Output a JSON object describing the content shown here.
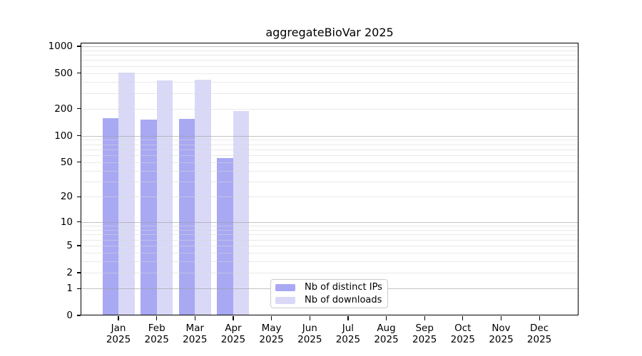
{
  "title": "aggregateBioVar 2025",
  "chart_data": {
    "type": "bar",
    "title": "aggregateBioVar 2025",
    "x_categories": [
      {
        "month": "Jan",
        "year": "2025"
      },
      {
        "month": "Feb",
        "year": "2025"
      },
      {
        "month": "Mar",
        "year": "2025"
      },
      {
        "month": "Apr",
        "year": "2025"
      },
      {
        "month": "May",
        "year": "2025"
      },
      {
        "month": "Jun",
        "year": "2025"
      },
      {
        "month": "Jul",
        "year": "2025"
      },
      {
        "month": "Aug",
        "year": "2025"
      },
      {
        "month": "Sep",
        "year": "2025"
      },
      {
        "month": "Oct",
        "year": "2025"
      },
      {
        "month": "Nov",
        "year": "2025"
      },
      {
        "month": "Dec",
        "year": "2025"
      }
    ],
    "series": [
      {
        "name": "Nb of distinct IPs",
        "color": "#a8a8f3",
        "values": [
          158,
          152,
          155,
          56,
          null,
          null,
          null,
          null,
          null,
          null,
          null,
          null
        ]
      },
      {
        "name": "Nb of downloads",
        "color": "#d9d9f7",
        "values": [
          512,
          419,
          421,
          188,
          null,
          null,
          null,
          null,
          null,
          null,
          null,
          null
        ]
      }
    ],
    "y_axis": {
      "scale": "log10(1+x)",
      "ticks": [
        0,
        1,
        2,
        5,
        10,
        20,
        50,
        100,
        200,
        500,
        1000
      ],
      "tick_labels": [
        "0",
        "1",
        "2",
        "5",
        "10",
        "20",
        "50",
        "100",
        "200",
        "500",
        "1000"
      ],
      "range_max": 1095
    },
    "grid": {
      "orientation": "horizontal",
      "major_at": [
        1,
        10,
        100,
        1000
      ],
      "minor_multiples": [
        2,
        3,
        4,
        5,
        6,
        7,
        8,
        9
      ]
    },
    "legend_position": "inside-bottom-center"
  },
  "legend": {
    "items": [
      {
        "label": "Nb of distinct IPs",
        "color": "#a8a8f3"
      },
      {
        "label": "Nb of downloads",
        "color": "#d9d9f7"
      }
    ]
  },
  "colors": {
    "background": "#ffffff",
    "axis": "#000000",
    "minor_grid": "#ebebeb",
    "major_grid": "#c4c4c4",
    "legend_border": "#cccccc",
    "text": "#000000"
  }
}
